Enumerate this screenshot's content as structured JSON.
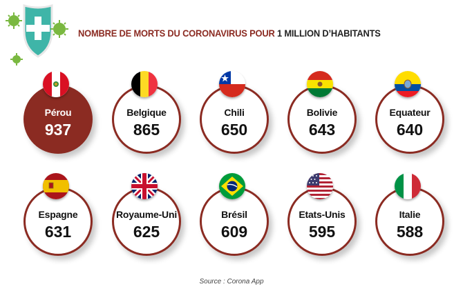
{
  "title": {
    "part1": "NOMBRE DE MORTS DU CORONAVIRUS POUR",
    "part2": " 1 MILLION D’HABITANTS"
  },
  "colors": {
    "accent": "#8b2b22",
    "highlight_fill": "#8b2b22"
  },
  "countries": [
    {
      "name": "Pérou",
      "value": "937",
      "flag": "peru-flag-icon",
      "highlight": true
    },
    {
      "name": "Belgique",
      "value": "865",
      "flag": "belgium-flag-icon"
    },
    {
      "name": "Chili",
      "value": "650",
      "flag": "chile-flag-icon"
    },
    {
      "name": "Bolivie",
      "value": "643",
      "flag": "bolivia-flag-icon"
    },
    {
      "name": "Equateur",
      "value": "640",
      "flag": "ecuador-flag-icon"
    },
    {
      "name": "Espagne",
      "value": "631",
      "flag": "spain-flag-icon"
    },
    {
      "name": "Royaume-Uni",
      "value": "625",
      "flag": "uk-flag-icon"
    },
    {
      "name": "Brésil",
      "value": "609",
      "flag": "brazil-flag-icon"
    },
    {
      "name": "Etats-Unis",
      "value": "595",
      "flag": "usa-flag-icon"
    },
    {
      "name": "Italie",
      "value": "588",
      "flag": "italy-flag-icon"
    }
  ],
  "source": "Source : Corona App"
}
